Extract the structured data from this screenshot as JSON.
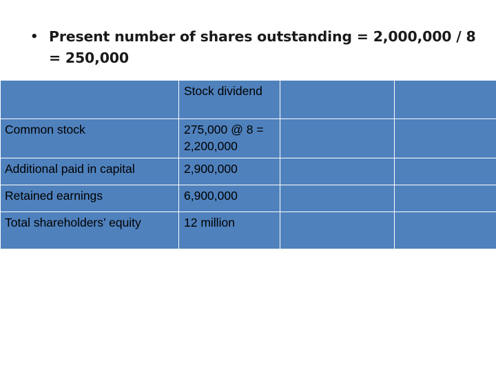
{
  "bullet": {
    "marker": "•",
    "text": "Present number of shares outstanding = 2,000,000 / 8 = 250,000"
  },
  "table": {
    "header": [
      "",
      "Stock dividend",
      "",
      ""
    ],
    "rows": [
      {
        "label": "Common stock",
        "value": "275,000 @ 8 = 2,200,000"
      },
      {
        "label": "Additional paid in capital",
        "value": "2,900,000"
      },
      {
        "label": "Retained earnings",
        "value": "6,900,000"
      },
      {
        "label": "Total shareholders’ equity",
        "value": "12 million"
      }
    ]
  },
  "colors": {
    "cell_fill": "#4f81bd",
    "cell_border": "#ffffff",
    "text": "#000000"
  }
}
